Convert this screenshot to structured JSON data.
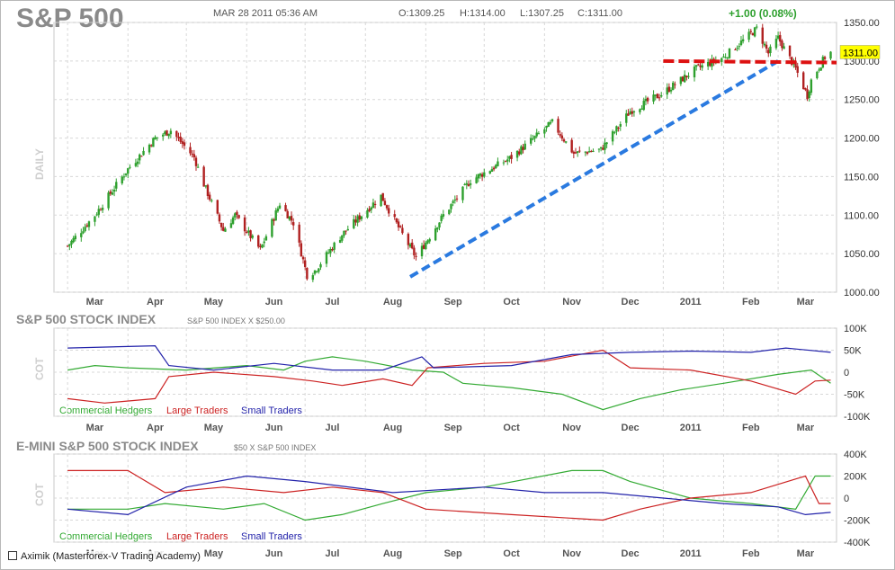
{
  "header": {
    "title": "S&P 500",
    "datetime": "MAR 28 2011 05:36 AM",
    "open": "O:1309.25",
    "high": "H:1314.00",
    "low": "L:1307.25",
    "close": "C:1311.00",
    "change": "+1.00 (0.08%)",
    "timeframe_label": "DAILY"
  },
  "footer": {
    "credit": "Aximik (Masterforex-V Trading Academy)"
  },
  "colors": {
    "up_candle": "#2ea02e",
    "down_candle": "#b02020",
    "trendline": "#2a7ae0",
    "resistance": "#dd1111",
    "price_tag_bg": "#ffff00",
    "grid": "#d8d8d8",
    "commercial": "#33aa33",
    "large": "#cc2222",
    "small": "#2222aa"
  },
  "chart_data": [
    {
      "type": "candlestick",
      "title": "S&P 500",
      "ylabel": "DAILY",
      "x_tick_labels": [
        "Mar",
        "Apr",
        "May",
        "Jun",
        "Jul",
        "Aug",
        "Sep",
        "Oct",
        "Nov",
        "Dec",
        "2011",
        "Feb",
        "Mar"
      ],
      "y_tick_labels": [
        "1350.00",
        "1300.00",
        "1250.00",
        "1200.00",
        "1150.00",
        "1100.00",
        "1050.00",
        "1000.00"
      ],
      "ylim": [
        1000,
        1350
      ],
      "grid": true,
      "last_price_label": "1311.00",
      "close_anchors": [
        [
          "2010-03-01",
          1060
        ],
        [
          "2010-03-15",
          1100
        ],
        [
          "2010-04-01",
          1160
        ],
        [
          "2010-04-15",
          1200
        ],
        [
          "2010-04-23",
          1210
        ],
        [
          "2010-05-05",
          1175
        ],
        [
          "2010-05-10",
          1140
        ],
        [
          "2010-05-20",
          1080
        ],
        [
          "2010-05-26",
          1100
        ],
        [
          "2010-06-08",
          1055
        ],
        [
          "2010-06-18",
          1115
        ],
        [
          "2010-06-25",
          1090
        ],
        [
          "2010-07-02",
          1022
        ],
        [
          "2010-07-06",
          1028
        ],
        [
          "2010-07-20",
          1075
        ],
        [
          "2010-08-09",
          1125
        ],
        [
          "2010-08-20",
          1075
        ],
        [
          "2010-08-27",
          1045
        ],
        [
          "2010-09-10",
          1100
        ],
        [
          "2010-09-24",
          1145
        ],
        [
          "2010-10-15",
          1175
        ],
        [
          "2010-11-05",
          1220
        ],
        [
          "2010-11-16",
          1180
        ],
        [
          "2010-11-30",
          1185
        ],
        [
          "2010-12-15",
          1235
        ],
        [
          "2010-12-31",
          1257
        ],
        [
          "2011-01-18",
          1290
        ],
        [
          "2011-02-01",
          1305
        ],
        [
          "2011-02-18",
          1342
        ],
        [
          "2011-02-24",
          1310
        ],
        [
          "2011-03-01",
          1330
        ],
        [
          "2011-03-10",
          1290
        ],
        [
          "2011-03-16",
          1255
        ],
        [
          "2011-03-18",
          1275
        ],
        [
          "2011-03-25",
          1305
        ],
        [
          "2011-03-28",
          1311
        ]
      ],
      "annotations": [
        {
          "label": "support trendline",
          "from": [
            "2010-08-24",
            1020
          ],
          "to": [
            "2011-03-01",
            1300
          ]
        },
        {
          "label": "resistance level",
          "from": [
            "2011-01-01",
            1300
          ],
          "to": [
            "2011-03-31",
            1298
          ]
        }
      ]
    },
    {
      "type": "line",
      "title": "S&P 500 STOCK INDEX",
      "subtitle": "S&P 500 INDEX X $250.00",
      "ylabel": "COT",
      "x_tick_labels": [
        "Mar",
        "Apr",
        "May",
        "Jun",
        "Jul",
        "Aug",
        "Sep",
        "Oct",
        "Nov",
        "Dec",
        "2011",
        "Feb",
        "Mar"
      ],
      "y_tick_labels": [
        "100K",
        "50K",
        "0",
        "-50K",
        "-100K"
      ],
      "ylim": [
        -100000,
        100000
      ],
      "series": [
        {
          "name": "Commercial Hedgers",
          "color": "#33aa33",
          "points": [
            [
              "2010-03-01",
              5000
            ],
            [
              "2010-03-15",
              15000
            ],
            [
              "2010-04-01",
              10000
            ],
            [
              "2010-05-01",
              5000
            ],
            [
              "2010-06-01",
              15000
            ],
            [
              "2010-06-20",
              5000
            ],
            [
              "2010-07-01",
              25000
            ],
            [
              "2010-07-15",
              35000
            ],
            [
              "2010-08-01",
              25000
            ],
            [
              "2010-08-25",
              5000
            ],
            [
              "2010-09-10",
              0
            ],
            [
              "2010-09-20",
              -25000
            ],
            [
              "2010-10-15",
              -35000
            ],
            [
              "2010-11-10",
              -50000
            ],
            [
              "2010-12-01",
              -85000
            ],
            [
              "2010-12-20",
              -60000
            ],
            [
              "2011-01-10",
              -40000
            ],
            [
              "2011-02-01",
              -25000
            ],
            [
              "2011-03-01",
              -5000
            ],
            [
              "2011-03-18",
              5000
            ],
            [
              "2011-03-28",
              -25000
            ]
          ]
        },
        {
          "name": "Large Traders",
          "color": "#cc2222",
          "points": [
            [
              "2010-03-01",
              -60000
            ],
            [
              "2010-03-20",
              -70000
            ],
            [
              "2010-04-15",
              -60000
            ],
            [
              "2010-04-22",
              -10000
            ],
            [
              "2010-05-15",
              0
            ],
            [
              "2010-06-15",
              -10000
            ],
            [
              "2010-07-05",
              -20000
            ],
            [
              "2010-07-20",
              -30000
            ],
            [
              "2010-08-10",
              -15000
            ],
            [
              "2010-08-25",
              -30000
            ],
            [
              "2010-09-02",
              10000
            ],
            [
              "2010-10-01",
              20000
            ],
            [
              "2010-11-01",
              25000
            ],
            [
              "2010-12-01",
              50000
            ],
            [
              "2010-12-15",
              10000
            ],
            [
              "2011-01-15",
              5000
            ],
            [
              "2011-02-15",
              -20000
            ],
            [
              "2011-03-10",
              -50000
            ],
            [
              "2011-03-20",
              -20000
            ],
            [
              "2011-03-28",
              -18000
            ]
          ]
        },
        {
          "name": "Small Traders",
          "color": "#2222aa",
          "points": [
            [
              "2010-03-01",
              55000
            ],
            [
              "2010-04-15",
              60000
            ],
            [
              "2010-04-22",
              15000
            ],
            [
              "2010-05-15",
              5000
            ],
            [
              "2010-06-15",
              20000
            ],
            [
              "2010-07-15",
              5000
            ],
            [
              "2010-08-10",
              5000
            ],
            [
              "2010-08-30",
              35000
            ],
            [
              "2010-09-05",
              10000
            ],
            [
              "2010-10-15",
              15000
            ],
            [
              "2010-11-15",
              40000
            ],
            [
              "2010-12-15",
              45000
            ],
            [
              "2011-01-15",
              48000
            ],
            [
              "2011-02-15",
              45000
            ],
            [
              "2011-03-05",
              55000
            ],
            [
              "2011-03-28",
              45000
            ]
          ]
        }
      ],
      "x_tick_labels_visible": true
    },
    {
      "type": "line",
      "title": "E-MINI S&P 500 STOCK INDEX",
      "subtitle": "$50 X S&P 500 INDEX",
      "ylabel": "COT",
      "x_tick_labels": [
        "Mar",
        "Apr",
        "May",
        "Jun",
        "Jul",
        "Aug",
        "Sep",
        "Oct",
        "Nov",
        "Dec",
        "2011",
        "Feb",
        "Mar"
      ],
      "y_tick_labels": [
        "400K",
        "200K",
        "0",
        "-200K",
        "-400K"
      ],
      "ylim": [
        -400000,
        400000
      ],
      "series": [
        {
          "name": "Commercial Hedgers",
          "color": "#33aa33",
          "points": [
            [
              "2010-03-01",
              -100000
            ],
            [
              "2010-04-01",
              -100000
            ],
            [
              "2010-04-20",
              -50000
            ],
            [
              "2010-05-20",
              -100000
            ],
            [
              "2010-06-10",
              -50000
            ],
            [
              "2010-07-01",
              -200000
            ],
            [
              "2010-07-20",
              -150000
            ],
            [
              "2010-08-10",
              -50000
            ],
            [
              "2010-09-01",
              50000
            ],
            [
              "2010-10-01",
              100000
            ],
            [
              "2010-11-15",
              250000
            ],
            [
              "2010-12-01",
              250000
            ],
            [
              "2010-12-15",
              150000
            ],
            [
              "2011-01-15",
              0
            ],
            [
              "2011-02-15",
              -50000
            ],
            [
              "2011-03-10",
              -100000
            ],
            [
              "2011-03-20",
              200000
            ],
            [
              "2011-03-28",
              200000
            ]
          ]
        },
        {
          "name": "Large Traders",
          "color": "#cc2222",
          "points": [
            [
              "2010-03-01",
              250000
            ],
            [
              "2010-04-01",
              250000
            ],
            [
              "2010-04-20",
              50000
            ],
            [
              "2010-05-20",
              100000
            ],
            [
              "2010-06-20",
              50000
            ],
            [
              "2010-07-15",
              100000
            ],
            [
              "2010-08-10",
              50000
            ],
            [
              "2010-09-01",
              -100000
            ],
            [
              "2010-10-15",
              -150000
            ],
            [
              "2010-12-01",
              -200000
            ],
            [
              "2010-12-20",
              -100000
            ],
            [
              "2011-01-15",
              0
            ],
            [
              "2011-02-15",
              50000
            ],
            [
              "2011-03-15",
              200000
            ],
            [
              "2011-03-22",
              -50000
            ],
            [
              "2011-03-28",
              -50000
            ]
          ]
        },
        {
          "name": "Small Traders",
          "color": "#2222aa",
          "points": [
            [
              "2010-03-01",
              -100000
            ],
            [
              "2010-04-01",
              -150000
            ],
            [
              "2010-05-01",
              100000
            ],
            [
              "2010-06-01",
              200000
            ],
            [
              "2010-07-01",
              150000
            ],
            [
              "2010-08-15",
              50000
            ],
            [
              "2010-10-01",
              100000
            ],
            [
              "2010-11-01",
              50000
            ],
            [
              "2010-12-01",
              50000
            ],
            [
              "2011-01-01",
              0
            ],
            [
              "2011-02-01",
              -50000
            ],
            [
              "2011-03-01",
              -80000
            ],
            [
              "2011-03-15",
              -150000
            ],
            [
              "2011-03-28",
              -130000
            ]
          ]
        }
      ]
    }
  ],
  "panel_labels": {
    "p2_title": "S&P 500 STOCK INDEX",
    "p2_sub": "S&P 500 INDEX X $250.00",
    "p2_vlabel": "COT",
    "p3_title": "E-MINI S&P 500 STOCK INDEX",
    "p3_sub": "$50 X S&P 500 INDEX",
    "p3_vlabel": "COT",
    "legend_commercial": "Commercial Hedgers",
    "legend_large": "Large Traders",
    "legend_small": "Small Traders"
  }
}
